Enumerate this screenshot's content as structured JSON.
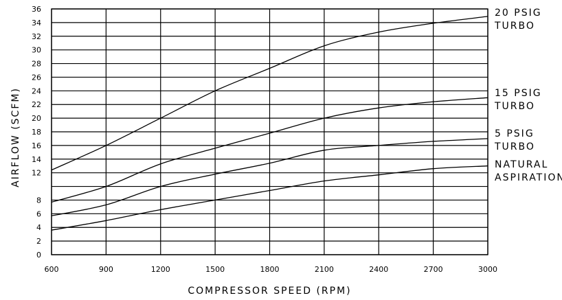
{
  "chart_data": {
    "type": "line",
    "title": "",
    "xlabel": "COMPRESSOR SPEED (RPM)",
    "ylabel": "AIRFLOW (SCFM)",
    "xlim": [
      600,
      3000
    ],
    "ylim": [
      0,
      36
    ],
    "x_ticks": [
      "600",
      "900",
      "1200",
      "1500",
      "1800",
      "2100",
      "2400",
      "2700",
      "3000"
    ],
    "y_ticks": [
      "0",
      "2",
      "4",
      "6",
      "8",
      "12",
      "14",
      "16",
      "18",
      "20",
      "22",
      "24",
      "26",
      "28",
      "30",
      "32",
      "34",
      "36"
    ],
    "grid": true,
    "series": [
      {
        "name": "20 PSIG TURBO",
        "label_lines": [
          "20 PSIG",
          "TURBO"
        ],
        "x": [
          600,
          900,
          1200,
          1500,
          1800,
          2100,
          2400,
          2700,
          3000
        ],
        "y": [
          12.4,
          16.0,
          20.0,
          24.0,
          27.3,
          30.6,
          32.6,
          33.9,
          34.9
        ]
      },
      {
        "name": "15 PSIG TURBO",
        "label_lines": [
          "15 PSIG",
          "TURBO"
        ],
        "x": [
          600,
          900,
          1200,
          1500,
          1800,
          2100,
          2400,
          2700,
          3000
        ],
        "y": [
          7.7,
          10.0,
          13.3,
          15.6,
          17.8,
          20.0,
          21.5,
          22.4,
          23.0
        ]
      },
      {
        "name": "5 PSIG TURBO",
        "label_lines": [
          "5 PSIG",
          "TURBO"
        ],
        "x": [
          600,
          900,
          1200,
          1500,
          1800,
          2100,
          2400,
          2700,
          3000
        ],
        "y": [
          5.7,
          7.3,
          10.0,
          11.8,
          13.4,
          15.3,
          16.0,
          16.6,
          17.0
        ]
      },
      {
        "name": "NATURAL ASPIRATION",
        "label_lines": [
          "NATURAL",
          "ASPIRATION"
        ],
        "x": [
          600,
          900,
          1200,
          1500,
          1800,
          2100,
          2400,
          2700,
          3000
        ],
        "y": [
          3.6,
          5.0,
          6.6,
          8.0,
          9.4,
          10.8,
          11.7,
          12.6,
          13.0
        ]
      }
    ]
  }
}
